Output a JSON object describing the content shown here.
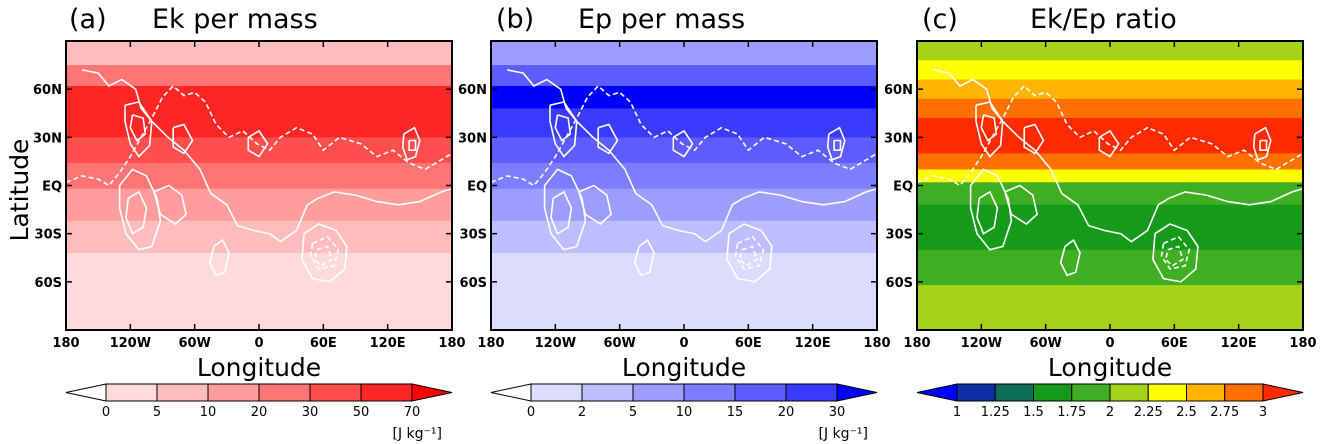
{
  "chart_data": [
    {
      "type": "heatmap",
      "panel": "(a)",
      "title": "Ek per mass",
      "xlabel": "Longitude",
      "ylabel": "Latitude",
      "x_ticks": [
        "180",
        "120W",
        "60W",
        "0",
        "60E",
        "120E",
        "180"
      ],
      "y_ticks": [
        "60N",
        "30N",
        "EQ",
        "30S",
        "60S"
      ],
      "xlim": [
        -180,
        180
      ],
      "ylim": [
        -90,
        90
      ],
      "colorbar": {
        "ticks": [
          "0",
          "5",
          "10",
          "20",
          "30",
          "50",
          "70"
        ],
        "colors": [
          "#ffffff",
          "#ffdada",
          "#ffbcbc",
          "#ff9c9c",
          "#ff7575",
          "#ff4e4e",
          "#ff2626",
          "#ff0000"
        ],
        "unit": "[J kg⁻¹]"
      },
      "latitude_band_levels": [
        {
          "lat": [
            75,
            90
          ],
          "level": 2
        },
        {
          "lat": [
            62,
            75
          ],
          "level": 4
        },
        {
          "lat": [
            48,
            62
          ],
          "level": 6
        },
        {
          "lat": [
            30,
            48
          ],
          "level": 6
        },
        {
          "lat": [
            14,
            30
          ],
          "level": 5
        },
        {
          "lat": [
            -2,
            14
          ],
          "level": 4
        },
        {
          "lat": [
            -22,
            -2
          ],
          "level": 3
        },
        {
          "lat": [
            -42,
            -22
          ],
          "level": 2
        },
        {
          "lat": [
            -90,
            -42
          ],
          "level": 1
        }
      ]
    },
    {
      "type": "heatmap",
      "panel": "(b)",
      "title": "Ep per mass",
      "xlabel": "Longitude",
      "ylabel": "",
      "x_ticks": [
        "180",
        "120W",
        "60W",
        "0",
        "60E",
        "120E",
        "180"
      ],
      "y_ticks": [
        "60N",
        "30N",
        "EQ",
        "30S",
        "60S"
      ],
      "xlim": [
        -180,
        180
      ],
      "ylim": [
        -90,
        90
      ],
      "colorbar": {
        "ticks": [
          "0",
          "2",
          "5",
          "10",
          "15",
          "20",
          "30"
        ],
        "colors": [
          "#ffffff",
          "#dcdcff",
          "#bdbdff",
          "#9d9dff",
          "#7d7dff",
          "#5c5cff",
          "#3a3aff",
          "#0000ff"
        ],
        "unit": "[J kg⁻¹]"
      },
      "latitude_band_levels": [
        {
          "lat": [
            75,
            90
          ],
          "level": 3
        },
        {
          "lat": [
            62,
            75
          ],
          "level": 5
        },
        {
          "lat": [
            48,
            62
          ],
          "level": 7
        },
        {
          "lat": [
            30,
            48
          ],
          "level": 6
        },
        {
          "lat": [
            14,
            30
          ],
          "level": 5
        },
        {
          "lat": [
            -2,
            14
          ],
          "level": 4
        },
        {
          "lat": [
            -22,
            -2
          ],
          "level": 3
        },
        {
          "lat": [
            -42,
            -22
          ],
          "level": 2
        },
        {
          "lat": [
            -90,
            -42
          ],
          "level": 1
        }
      ]
    },
    {
      "type": "heatmap",
      "panel": "(c)",
      "title": "Ek/Ep ratio",
      "xlabel": "Longitude",
      "ylabel": "",
      "x_ticks": [
        "180",
        "120W",
        "60W",
        "0",
        "60E",
        "120E",
        "180"
      ],
      "y_ticks": [
        "60N",
        "30N",
        "EQ",
        "30S",
        "60S"
      ],
      "xlim": [
        -180,
        180
      ],
      "ylim": [
        -90,
        90
      ],
      "colorbar": {
        "ticks": [
          "1",
          "1.25",
          "1.5",
          "1.75",
          "2",
          "2.25",
          "2.5",
          "2.75",
          "3"
        ],
        "colors": [
          "#0000ff",
          "#0c2fa6",
          "#0e6e5a",
          "#169a1a",
          "#3fae22",
          "#a6d21a",
          "#ffff00",
          "#ffb400",
          "#ff7000",
          "#ff2a00"
        ],
        "unit": ""
      },
      "latitude_band_levels": [
        {
          "lat": [
            78,
            90
          ],
          "level": 5
        },
        {
          "lat": [
            66,
            78
          ],
          "level": 6
        },
        {
          "lat": [
            54,
            66
          ],
          "level": 7
        },
        {
          "lat": [
            42,
            54
          ],
          "level": 8
        },
        {
          "lat": [
            20,
            42
          ],
          "level": 9
        },
        {
          "lat": [
            10,
            20
          ],
          "level": 8
        },
        {
          "lat": [
            2,
            10
          ],
          "level": 6
        },
        {
          "lat": [
            -12,
            2
          ],
          "level": 4
        },
        {
          "lat": [
            -40,
            -12
          ],
          "level": 3
        },
        {
          "lat": [
            -62,
            -40
          ],
          "level": 4
        },
        {
          "lat": [
            -90,
            -62
          ],
          "level": 5
        }
      ]
    }
  ]
}
